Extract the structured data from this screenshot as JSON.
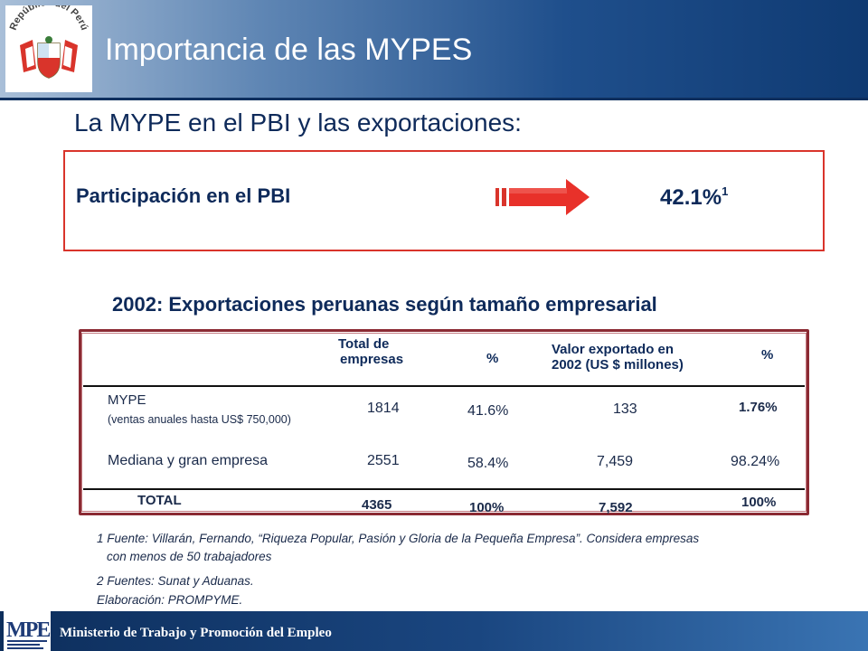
{
  "header": {
    "title": "Importancia de las MYPES",
    "logo_text": "República del Perú"
  },
  "subtitle": "La MYPE en el PBI y las exportaciones:",
  "pbi": {
    "label": "Participación en el PBI",
    "value": "42.1%",
    "footnote_marker": "1"
  },
  "exports": {
    "title": "2002: Exportaciones peruanas según tamaño empresarial",
    "headers": {
      "total_empresas_line1": "Total de",
      "total_empresas_line2": "empresas",
      "pct1": "%",
      "valor_line1": "Valor exportado en",
      "valor_line2": "2002 (US $ millones)",
      "pct2": "%"
    },
    "rows": [
      {
        "name": "MYPE",
        "sub": "(ventas anuales hasta US$ 750,000)",
        "total": "1814",
        "pct": "41.6%",
        "valor": "133",
        "pct2": "1.76%"
      },
      {
        "name": "Mediana y gran empresa",
        "sub": "",
        "total": "2551",
        "pct": "58.4%",
        "valor": "7,459",
        "pct2": "98.24%"
      }
    ],
    "total_row": {
      "name": "TOTAL",
      "total": "4365",
      "pct": "100%",
      "valor": "7,592",
      "pct2": "100%"
    }
  },
  "footnotes": {
    "note1_line1": "1 Fuente: Villarán, Fernando, “Riqueza Popular, Pasión y Gloria de la Pequeña Empresa”. Considera empresas",
    "note1_line2": "con menos de 50 trabajadores",
    "note2": "2 Fuentes: Sunat y Aduanas.",
    "elaboracion": "Elaboración: PROMPYME."
  },
  "footer": {
    "ministry": "Ministerio de Trabajo y Promoción del Empleo",
    "logo_letters": "MPE"
  },
  "colors": {
    "accent_red": "#d9342b",
    "navy": "#0e2a5a"
  }
}
